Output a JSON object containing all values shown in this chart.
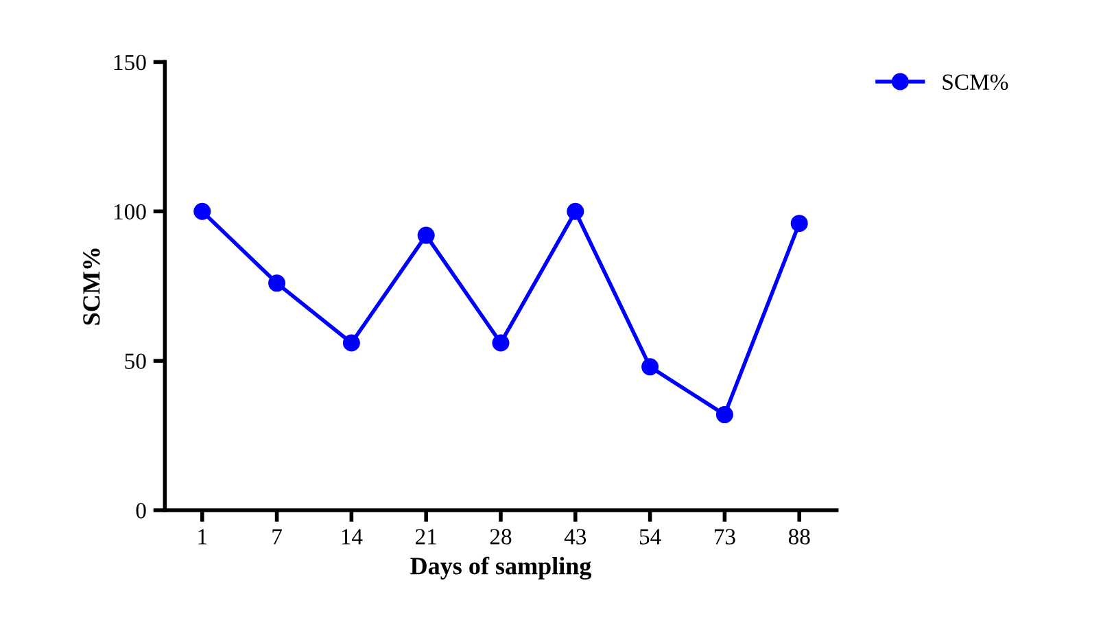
{
  "chart_data": {
    "type": "line",
    "xlabel": "Days of sampling",
    "ylabel": "SCM%",
    "categories": [
      "1",
      "7",
      "14",
      "21",
      "28",
      "43",
      "54",
      "73",
      "88"
    ],
    "series": [
      {
        "name": "SCM%",
        "color": "#0000ff",
        "values": [
          100,
          76,
          56,
          92,
          56,
          100,
          48,
          32,
          96
        ]
      }
    ],
    "ylim": [
      0,
      150
    ],
    "yticks": [
      0,
      50,
      100,
      150
    ],
    "grid": false,
    "legend": "top right",
    "marker": "circle",
    "line_style": "solid"
  }
}
